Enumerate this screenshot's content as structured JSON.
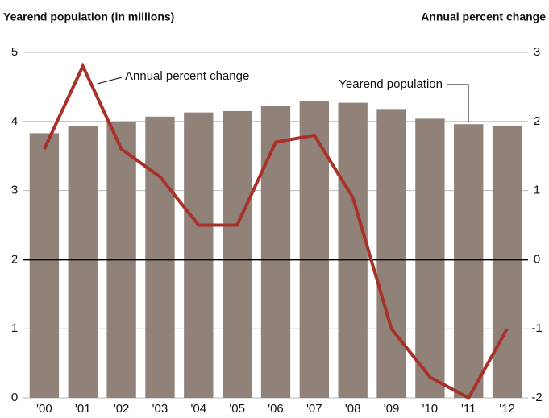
{
  "chart_data": {
    "type": "bar_line",
    "y_label": "Yearend population (in millions)",
    "y2_label": "Annual percent change",
    "categories": [
      "'00",
      "'01",
      "'02",
      "'03",
      "'04",
      "'05",
      "'06",
      "'07",
      "'08",
      "'09",
      "'10",
      "'11",
      "'12"
    ],
    "series": [
      {
        "name": "Yearend population",
        "type": "bar",
        "color": "#918279",
        "axis": "y",
        "values": [
          3.83,
          3.93,
          3.99,
          4.07,
          4.13,
          4.15,
          4.23,
          4.29,
          4.27,
          4.18,
          4.04,
          3.96,
          3.94
        ]
      },
      {
        "name": "Annual percent change",
        "type": "line",
        "color": "#a8312a",
        "axis": "y2",
        "values": [
          1.6,
          2.8,
          1.6,
          1.2,
          0.5,
          0.5,
          1.7,
          1.8,
          0.9,
          -1.0,
          -1.7,
          -2.0,
          -1.0
        ]
      }
    ],
    "ylim": [
      0,
      5
    ],
    "yticks": [
      0,
      1,
      2,
      3,
      4,
      5
    ],
    "y2lim": [
      -2,
      3
    ],
    "y2ticks": [
      -2,
      -1,
      0,
      1,
      2,
      3
    ],
    "grid": true
  }
}
